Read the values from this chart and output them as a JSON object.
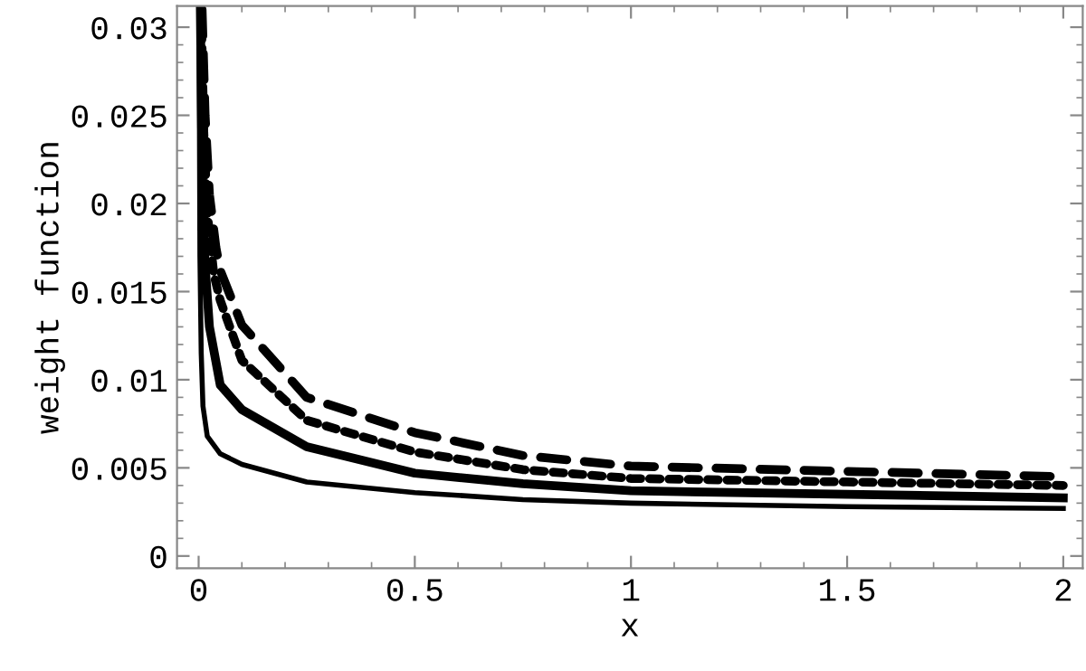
{
  "chart_data": {
    "type": "line",
    "xlabel": "x",
    "ylabel": "weight function",
    "xlim": [
      -0.05,
      2.045
    ],
    "ylim": [
      -0.0007,
      0.0312
    ],
    "xticks": [
      0,
      {
        "value": 0.1,
        "label": null
      },
      {
        "value": 0.2,
        "label": null
      },
      {
        "value": 0.3,
        "label": null
      },
      {
        "value": 0.4,
        "label": null
      },
      0.5,
      {
        "value": 0.6,
        "label": null
      },
      {
        "value": 0.7,
        "label": null
      },
      {
        "value": 0.8,
        "label": null
      },
      {
        "value": 0.9,
        "label": null
      },
      1,
      {
        "value": 1.1,
        "label": null
      },
      {
        "value": 1.2,
        "label": null
      },
      {
        "value": 1.3,
        "label": null
      },
      {
        "value": 1.4,
        "label": null
      },
      1.5,
      {
        "value": 1.6,
        "label": null
      },
      {
        "value": 1.7,
        "label": null
      },
      {
        "value": 1.8,
        "label": null
      },
      {
        "value": 1.9,
        "label": null
      },
      2
    ],
    "yticks": [
      0,
      {
        "value": 0.001,
        "label": null
      },
      {
        "value": 0.002,
        "label": null
      },
      {
        "value": 0.003,
        "label": null
      },
      {
        "value": 0.004,
        "label": null
      },
      0.005,
      {
        "value": 0.006,
        "label": null
      },
      {
        "value": 0.007,
        "label": null
      },
      {
        "value": 0.008,
        "label": null
      },
      {
        "value": 0.009,
        "label": null
      },
      0.01,
      {
        "value": 0.011,
        "label": null
      },
      {
        "value": 0.012,
        "label": null
      },
      {
        "value": 0.013,
        "label": null
      },
      {
        "value": 0.014,
        "label": null
      },
      0.015,
      {
        "value": 0.016,
        "label": null
      },
      {
        "value": 0.017,
        "label": null
      },
      {
        "value": 0.018,
        "label": null
      },
      {
        "value": 0.019,
        "label": null
      },
      0.02,
      {
        "value": 0.021,
        "label": null
      },
      {
        "value": 0.022,
        "label": null
      },
      {
        "value": 0.023,
        "label": null
      },
      {
        "value": 0.024,
        "label": null
      },
      0.025,
      {
        "value": 0.026,
        "label": null
      },
      {
        "value": 0.027,
        "label": null
      },
      {
        "value": 0.028,
        "label": null
      },
      {
        "value": 0.029,
        "label": null
      },
      0.03
    ],
    "grid": false,
    "legend": false,
    "series": [
      {
        "color": "#000000",
        "line_style": "solid",
        "x": [
          0.001,
          0.003,
          0.006,
          0.01,
          0.02,
          0.05,
          0.1,
          0.25,
          0.5,
          0.75,
          1,
          1.5,
          2
        ],
        "values": [
          0.031,
          0.017,
          0.0115,
          0.0085,
          0.0068,
          0.0058,
          0.0052,
          0.0042,
          0.0036,
          0.0032,
          0.003,
          0.0028,
          0.0027
        ]
      },
      {
        "color": "#000000",
        "line_style": "solid",
        "x": [
          0.004,
          0.008,
          0.015,
          0.025,
          0.05,
          0.1,
          0.25,
          0.5,
          0.75,
          1,
          1.5,
          2
        ],
        "values": [
          0.031,
          0.022,
          0.0165,
          0.013,
          0.0097,
          0.0083,
          0.0062,
          0.0047,
          0.0041,
          0.0037,
          0.0035,
          0.0033
        ]
      },
      {
        "color": "#000000",
        "line_style": "dotted",
        "x": [
          0.006,
          0.012,
          0.02,
          0.035,
          0.05,
          0.1,
          0.25,
          0.5,
          0.75,
          1,
          1.5,
          2
        ],
        "values": [
          0.031,
          0.024,
          0.0195,
          0.016,
          0.0145,
          0.0111,
          0.0077,
          0.0059,
          0.0049,
          0.0044,
          0.0042,
          0.004
        ]
      },
      {
        "color": "#000000",
        "line_style": "dashed",
        "x": [
          0.008,
          0.015,
          0.025,
          0.04,
          0.05,
          0.1,
          0.25,
          0.5,
          0.75,
          1,
          1.5,
          2
        ],
        "values": [
          0.031,
          0.025,
          0.0205,
          0.0175,
          0.0162,
          0.0131,
          0.009,
          0.007,
          0.0057,
          0.0051,
          0.0048,
          0.0045
        ]
      }
    ]
  }
}
